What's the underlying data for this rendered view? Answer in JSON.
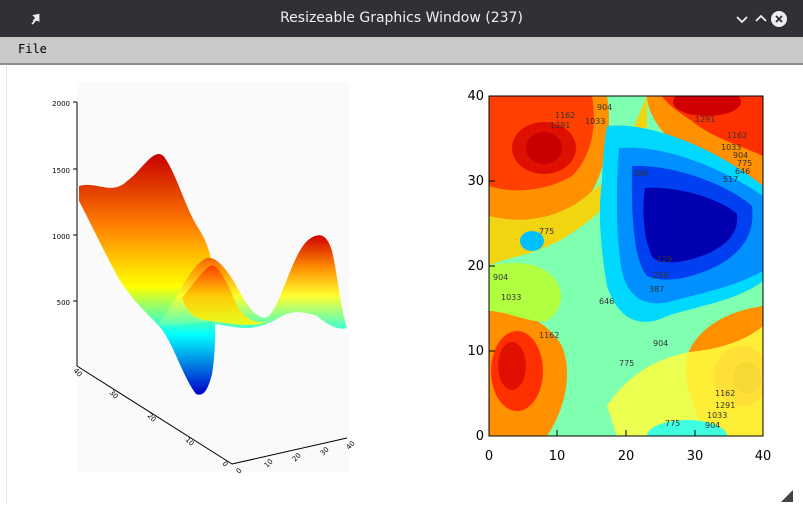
{
  "window": {
    "title": "Resizeable Graphics Window (237)",
    "controls": [
      "minimize",
      "maximize",
      "close"
    ]
  },
  "menu": {
    "items": [
      {
        "label": "File"
      }
    ]
  },
  "chart_data": [
    {
      "type": "surface",
      "z_ticks": [
        "2000",
        "1500",
        "1000",
        "500"
      ],
      "y_ticks": [
        "40",
        "30",
        "20",
        "10",
        "0"
      ],
      "x_ticks": [
        "0",
        "10",
        "20",
        "30",
        "40"
      ],
      "colormap": "rainbow (blue low → red high)",
      "background": "#fafafa"
    },
    {
      "type": "contour",
      "x_ticks": [
        "0",
        "10",
        "20",
        "30",
        "40"
      ],
      "y_ticks": [
        "0",
        "10",
        "20",
        "30",
        "40"
      ],
      "xlim": [
        0,
        40
      ],
      "ylim": [
        0,
        40
      ],
      "contour_labels": [
        "1162",
        "1291",
        "904",
        "1033",
        "1291",
        "1162",
        "1033",
        "904",
        "775",
        "646",
        "517",
        "388",
        "775",
        "129",
        "258",
        "387",
        "904",
        "1033",
        "1162",
        "646",
        "775",
        "904",
        "1162",
        "1291",
        "1033",
        "904",
        "775"
      ],
      "colormap": "rainbow filled contours"
    }
  ]
}
